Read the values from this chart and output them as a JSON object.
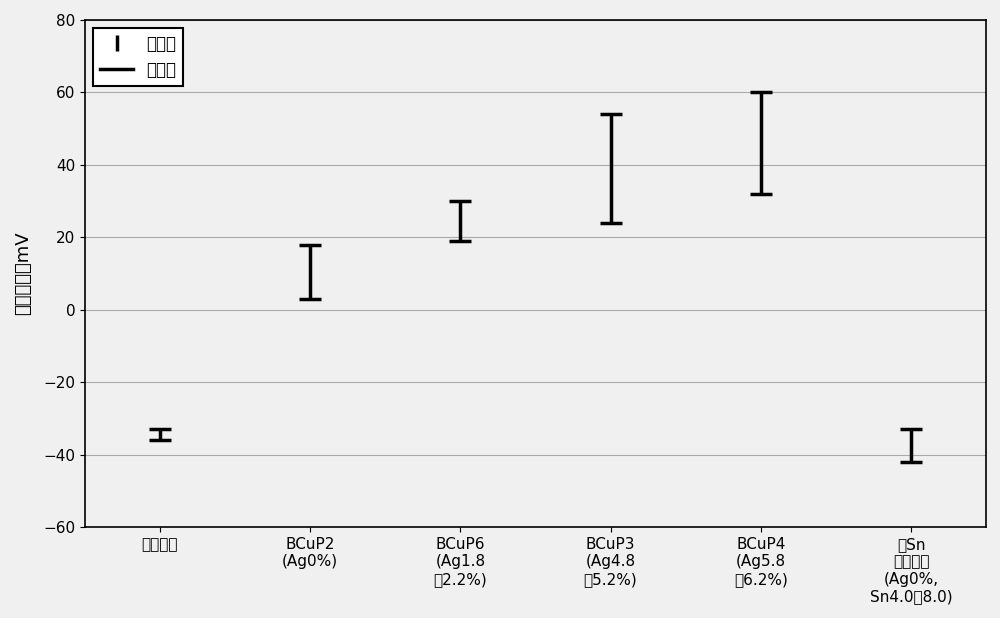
{
  "categories": [
    "燳脱氧銅",
    "BCuP2\n(Ag0%)",
    "BCuP6\n(Ag1.8\n～2.2%)",
    "BCuP3\n(Ag4.8\n～5.2%)",
    "BCuP4\n(Ag5.8\n～6.2%)",
    "含Sn\n燳銃鈢料\n(Ag0%,\nSn4.0～8.0)"
  ],
  "max_values": [
    -33,
    18,
    30,
    54,
    60,
    -33
  ],
  "min_values": [
    -36,
    3,
    19,
    24,
    32,
    -42
  ],
  "ylabel": "测定电位．mV",
  "ylim": [
    -60,
    80
  ],
  "yticks": [
    -60,
    -40,
    -20,
    0,
    20,
    40,
    60,
    80
  ],
  "legend_max_label": "最大値",
  "legend_min_label": "最小値",
  "background_color": "#f0f0f0",
  "plot_bg_color": "#f0f0f0",
  "bar_color": "black",
  "capsize": 8,
  "linewidth": 2.5,
  "grid_color": "#aaaaaa",
  "ylabel_fontsize": 13,
  "tick_fontsize": 11,
  "legend_fontsize": 12
}
